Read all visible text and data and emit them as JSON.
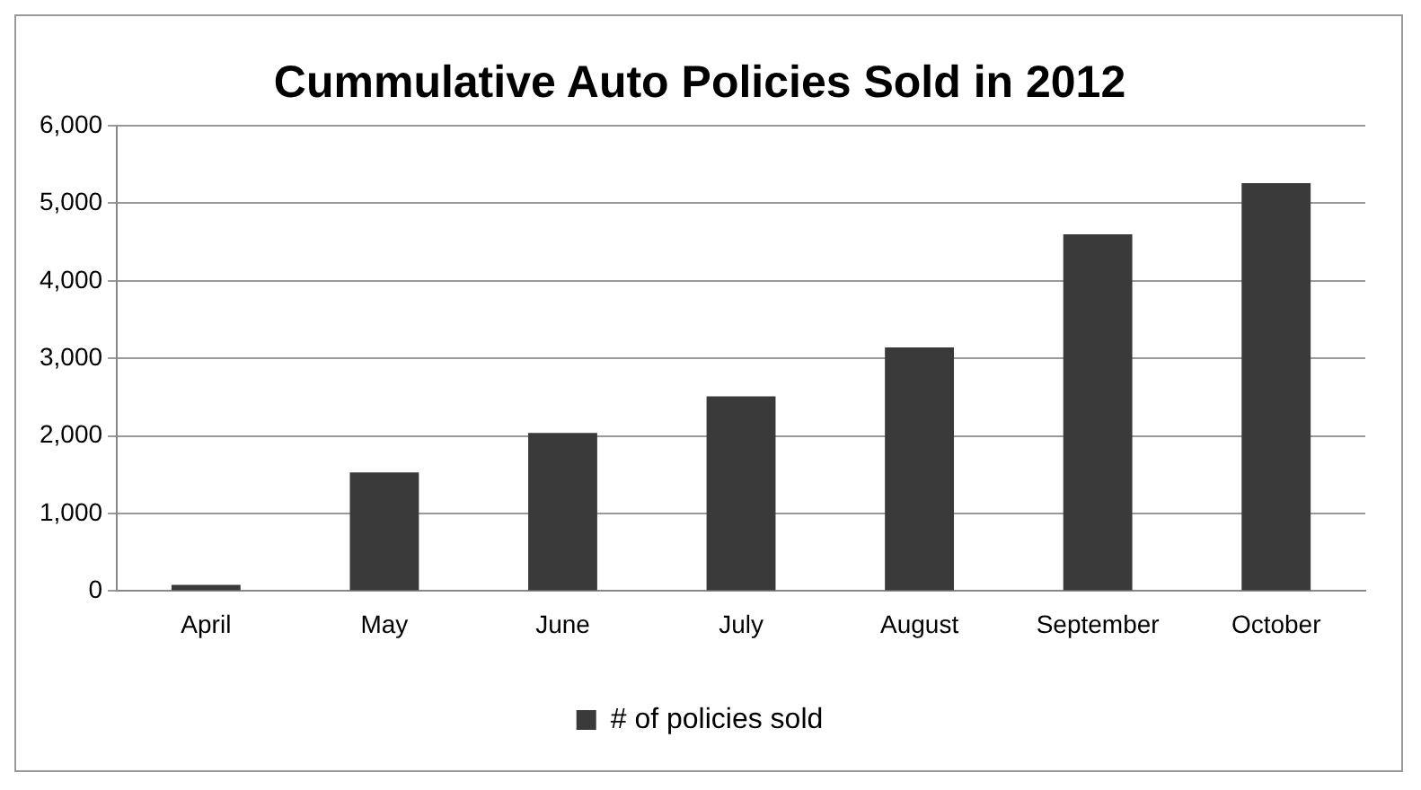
{
  "chart_data": {
    "type": "bar",
    "title": "Cummulative Auto Policies Sold in 2012",
    "categories": [
      "April",
      "May",
      "June",
      "July",
      "August",
      "September",
      "October"
    ],
    "series": [
      {
        "name": "# of policies sold",
        "color": "#3a3a3a",
        "values": [
          80,
          1530,
          2040,
          2510,
          3140,
          4600,
          5260
        ]
      }
    ],
    "ylim": [
      0,
      6000
    ],
    "yticks": [
      {
        "value": 0,
        "label": "0"
      },
      {
        "value": 1000,
        "label": "1,000"
      },
      {
        "value": 2000,
        "label": "2,000"
      },
      {
        "value": 3000,
        "label": "3,000"
      },
      {
        "value": 4000,
        "label": "4,000"
      },
      {
        "value": 5000,
        "label": "5,000"
      },
      {
        "value": 6000,
        "label": "6,000"
      }
    ],
    "grid": "y",
    "legend": "bottom"
  }
}
